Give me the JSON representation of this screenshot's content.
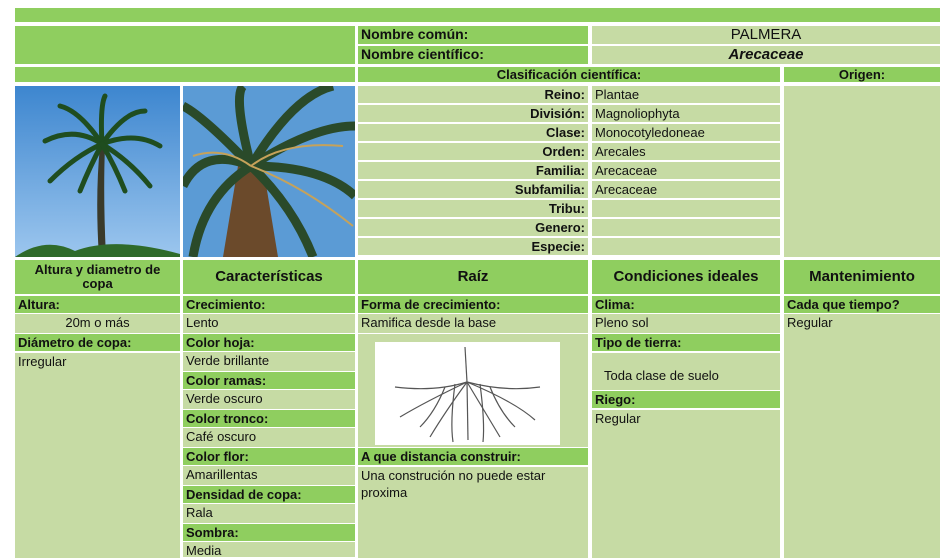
{
  "header": {
    "common_name_label": "Nombre común:",
    "common_name": "PALMERA",
    "scientific_name_label": "Nombre científico:",
    "scientific_name": "Arecaceae"
  },
  "classification": {
    "title": "Clasificación científica:",
    "rows": [
      {
        "label": "Reino:",
        "value": "Plantae"
      },
      {
        "label": "División:",
        "value": "Magnoliophyta"
      },
      {
        "label": "Clase:",
        "value": "Monocotyledoneae"
      },
      {
        "label": "Orden:",
        "value": "Arecales"
      },
      {
        "label": "Familia:",
        "value": "Arecaceae"
      },
      {
        "label": "Subfamilia:",
        "value": "Arecaceae"
      },
      {
        "label": "Tribu:"
      },
      {
        "label": "Genero:"
      },
      {
        "label": "Especie:"
      }
    ]
  },
  "origin_label": "Origen:",
  "columns": [
    {
      "title": "Altura y diametro de copa",
      "items": [
        {
          "label": "Altura:",
          "value": "20m o más"
        },
        {
          "label": "Diámetro de copa:",
          "value": "Irregular"
        }
      ]
    },
    {
      "title": "Características",
      "items": [
        {
          "label": "Crecimiento:",
          "value": "Lento"
        },
        {
          "label": "Color hoja:",
          "value": "Verde brillante"
        },
        {
          "label": "Color ramas:",
          "value": "Verde oscuro"
        },
        {
          "label": "Color tronco:",
          "value": "Café oscuro"
        },
        {
          "label": "Color flor:",
          "value": "Amarillentas"
        },
        {
          "label": "Densidad de copa:",
          "value": "Rala"
        },
        {
          "label": "Sombra:",
          "value": "Media"
        }
      ]
    },
    {
      "title": "Raíz",
      "items": [
        {
          "label": "Forma de crecimiento:",
          "value": "Ramifica desde la base"
        },
        {
          "label": "A que distancia construir:",
          "value": "Una construción no puede estar proxima"
        }
      ]
    },
    {
      "title": "Condiciones ideales",
      "items": [
        {
          "label": "Clima:",
          "value": "Pleno sol"
        },
        {
          "label": "Tipo de tierra:",
          "value": "Toda clase de suelo"
        },
        {
          "label": "Riego:",
          "value": "Regular"
        }
      ]
    },
    {
      "title": "Mantenimiento",
      "items": [
        {
          "label": "Cada que tiempo?",
          "value": "Regular"
        }
      ]
    }
  ]
}
